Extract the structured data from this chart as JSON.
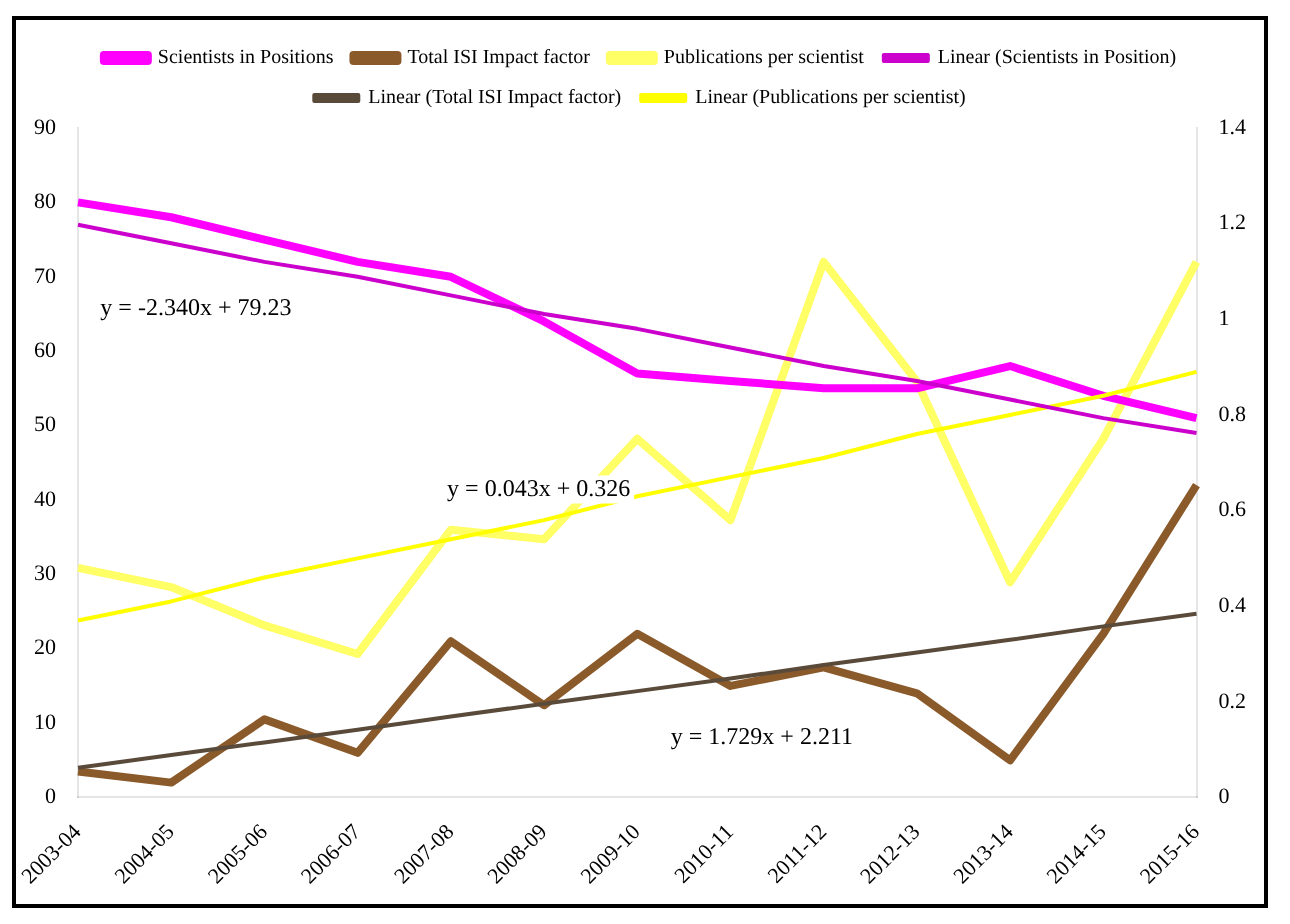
{
  "chart_data": {
    "type": "line",
    "categories": [
      "2003-04",
      "2004-05",
      "2005-06",
      "2006-07",
      "2007-08",
      "2008-09",
      "2009-10",
      "2010-11",
      "2011-12",
      "2012-13",
      "2013-14",
      "2014-15",
      "2015-16"
    ],
    "series": [
      {
        "name": "Scientists in Positions",
        "color": "#ff00ff",
        "values": [
          80,
          78,
          75,
          72,
          70,
          64,
          57,
          56,
          55,
          55,
          58,
          54,
          51
        ]
      },
      {
        "name": "Total ISI Impact factor",
        "color": "#8b5a2b",
        "values": [
          3.5,
          2,
          10.5,
          6,
          21,
          12.4,
          22,
          15,
          17.5,
          14,
          5,
          22,
          42
        ]
      },
      {
        "name": "Publications per scientist",
        "color": "#ffff66",
        "axis": "y2",
        "values": [
          0.48,
          0.44,
          0.36,
          0.3,
          0.56,
          0.54,
          0.75,
          0.58,
          1.12,
          0.87,
          0.45,
          0.75,
          1.12
        ]
      },
      {
        "name": "Linear (Scientists in Position)",
        "color": "#cc00cc",
        "values": [
          77,
          74.5,
          72,
          70,
          67.5,
          65,
          63,
          60.5,
          58,
          56,
          53.5,
          51,
          49
        ]
      },
      {
        "name": "Linear (Total ISI Impact factor)",
        "color": "#5a4a3a",
        "values": [
          4,
          5.7,
          7.4,
          9.1,
          10.9,
          12.6,
          14.3,
          16,
          17.8,
          19.5,
          21.2,
          23,
          24.7
        ]
      },
      {
        "name": "Linear (Publications per scientist)",
        "color": "#ffff00",
        "axis": "y2",
        "values": [
          0.37,
          0.41,
          0.46,
          0.5,
          0.54,
          0.58,
          0.63,
          0.67,
          0.71,
          0.76,
          0.8,
          0.84,
          0.89
        ]
      }
    ],
    "ylim": [
      0,
      90
    ],
    "yticks": [
      0,
      10,
      20,
      30,
      40,
      50,
      60,
      70,
      80,
      90
    ],
    "y2lim": [
      0,
      1.4
    ],
    "y2ticks": [
      0,
      0.2,
      0.4,
      0.6,
      0.8,
      1,
      1.2,
      1.4
    ],
    "annotations": [
      "y = -2.340x + 79.23",
      "y = 0.043x + 0.326",
      "y = 1.729x + 2.211"
    ],
    "legend": "top",
    "grid": false,
    "marker": "none"
  }
}
